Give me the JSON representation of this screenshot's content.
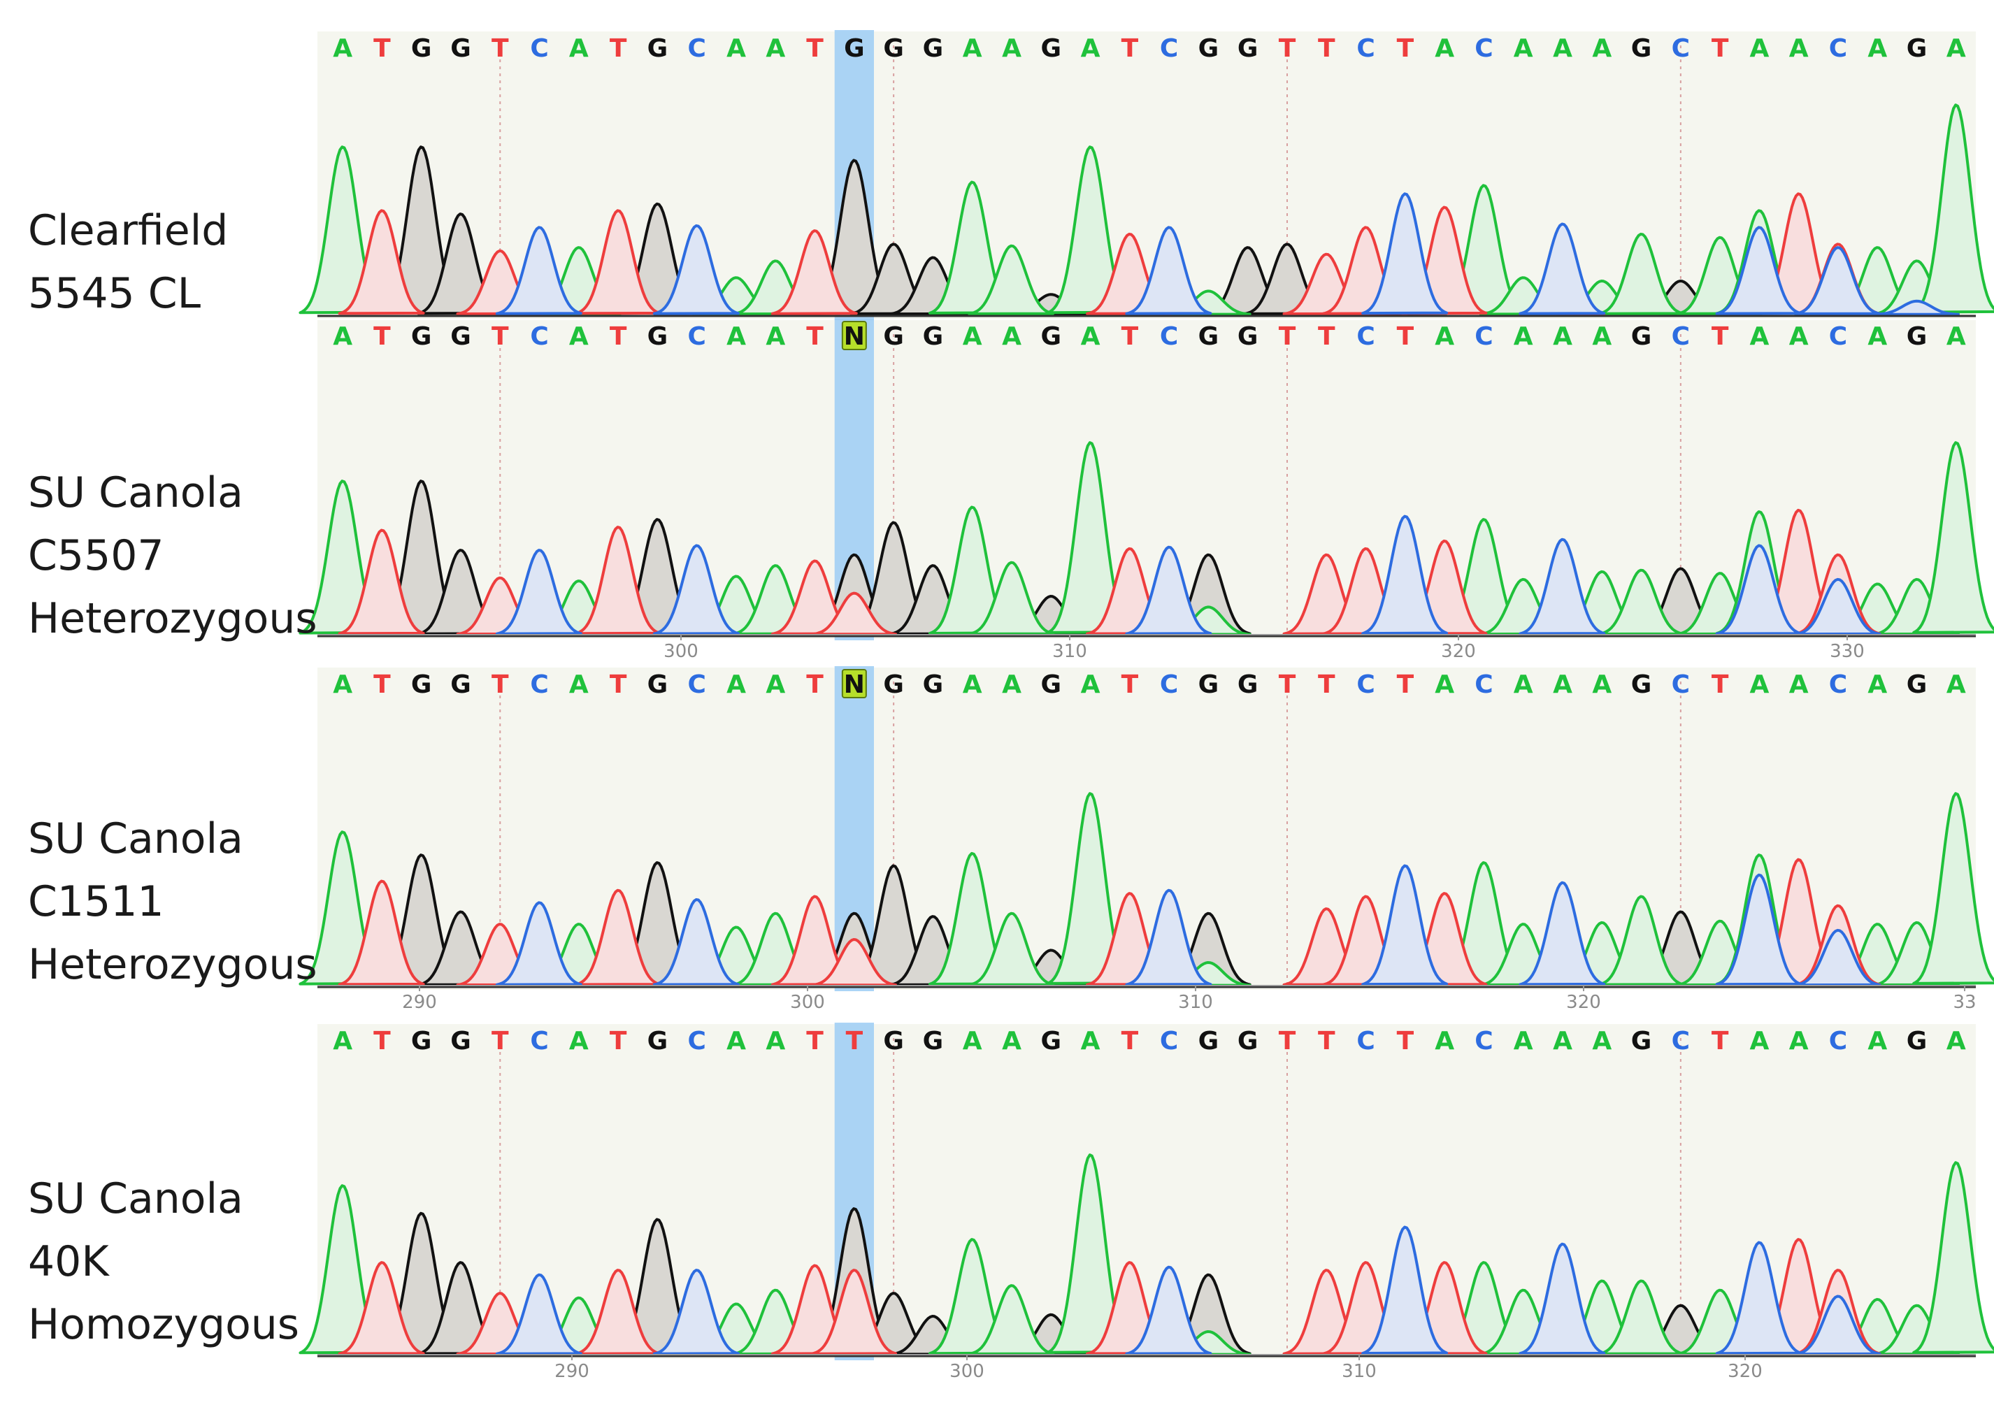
{
  "colors": {
    "A": "#1fc13b",
    "C": "#2d6ce0",
    "G": "#111111",
    "T": "#ee3d3d",
    "N": "#111111",
    "n_box": "#b6df2a",
    "highlight": "#9cccf5",
    "panel_bg": "#f5f6ef"
  },
  "icons": [
    "n-base-badge"
  ],
  "panels": [
    {
      "label_lines": [
        "Clearfield",
        "5545 CL"
      ],
      "calls": [
        "A",
        "T",
        "G",
        "G",
        "T",
        "C",
        "A",
        "T",
        "G",
        "C",
        "A",
        "A",
        "T",
        "G",
        "G",
        "G",
        "A",
        "A",
        "G",
        "A",
        "T",
        "C",
        "G",
        "G",
        "T",
        "T",
        "C",
        "T",
        "A",
        "C",
        "A",
        "A",
        "A",
        "G",
        "C",
        "T",
        "A",
        "A",
        "C",
        "A",
        "G",
        "A"
      ],
      "ticks": []
    },
    {
      "label_lines": [
        "SU Canola",
        "C5507",
        "Heterozygous"
      ],
      "calls": [
        "A",
        "T",
        "G",
        "G",
        "T",
        "C",
        "A",
        "T",
        "G",
        "C",
        "A",
        "A",
        "T",
        "N",
        "G",
        "G",
        "A",
        "A",
        "G",
        "A",
        "T",
        "C",
        "G",
        "G",
        "T",
        "T",
        "C",
        "T",
        "A",
        "C",
        "A",
        "A",
        "A",
        "G",
        "C",
        "T",
        "A",
        "A",
        "C",
        "A",
        "G",
        "A"
      ],
      "ticks": [
        "300",
        "310",
        "320",
        "330"
      ]
    },
    {
      "label_lines": [
        "SU Canola",
        "C1511",
        "Heterozygous"
      ],
      "calls": [
        "A",
        "T",
        "G",
        "G",
        "T",
        "C",
        "A",
        "T",
        "G",
        "C",
        "A",
        "A",
        "T",
        "N",
        "G",
        "G",
        "A",
        "A",
        "G",
        "A",
        "T",
        "C",
        "G",
        "G",
        "T",
        "T",
        "C",
        "T",
        "A",
        "C",
        "A",
        "A",
        "A",
        "G",
        "C",
        "T",
        "A",
        "A",
        "C",
        "A",
        "G",
        "A"
      ],
      "ticks": [
        "290",
        "300",
        "310",
        "320",
        "33"
      ]
    },
    {
      "label_lines": [
        "SU Canola",
        "40K",
        "Homozygous"
      ],
      "calls": [
        "A",
        "T",
        "G",
        "G",
        "T",
        "C",
        "A",
        "T",
        "G",
        "C",
        "A",
        "A",
        "T",
        "T",
        "G",
        "G",
        "A",
        "A",
        "G",
        "A",
        "T",
        "C",
        "G",
        "G",
        "T",
        "T",
        "C",
        "T",
        "A",
        "C",
        "A",
        "A",
        "A",
        "G",
        "C",
        "T",
        "A",
        "A",
        "C",
        "A",
        "G",
        "A"
      ],
      "ticks": [
        "290",
        "300",
        "310",
        "320"
      ]
    }
  ],
  "chart_data": [
    {
      "type": "line",
      "series": [
        {
          "name": "G",
          "peaks": [
            [
              3,
              100
            ],
            [
              4,
              60
            ],
            [
              9,
              66
            ],
            [
              14,
              92
            ],
            [
              15,
              42
            ],
            [
              16,
              34
            ],
            [
              19,
              12
            ],
            [
              22,
              30
            ],
            [
              24,
              40
            ],
            [
              25,
              42
            ],
            [
              28,
              52
            ],
            [
              35,
              20
            ],
            [
              41,
              12
            ]
          ]
        },
        {
          "name": "A",
          "peaks": [
            [
              1,
              100
            ],
            [
              7,
              40
            ],
            [
              11,
              22
            ],
            [
              12,
              32
            ],
            [
              17,
              79
            ],
            [
              18,
              41
            ],
            [
              20,
              100
            ],
            [
              23,
              14
            ],
            [
              30,
              77
            ],
            [
              31,
              22
            ],
            [
              33,
              20
            ],
            [
              34,
              48
            ],
            [
              36,
              46
            ],
            [
              37,
              62
            ],
            [
              40,
              40
            ],
            [
              41,
              32
            ],
            [
              42,
              125
            ]
          ]
        },
        {
          "name": "T",
          "peaks": [
            [
              2,
              62
            ],
            [
              5,
              38
            ],
            [
              8,
              62
            ],
            [
              13,
              50
            ],
            [
              21,
              48
            ],
            [
              26,
              36
            ],
            [
              27,
              52
            ],
            [
              29,
              64
            ],
            [
              32,
              11
            ],
            [
              38,
              72
            ],
            [
              39,
              42
            ]
          ]
        },
        {
          "name": "C",
          "peaks": [
            [
              6,
              52
            ],
            [
              10,
              53
            ],
            [
              22,
              52
            ],
            [
              28,
              72
            ],
            [
              32,
              54
            ],
            [
              37,
              52
            ],
            [
              39,
              40
            ],
            [
              41,
              8
            ]
          ]
        }
      ]
    },
    {
      "type": "line",
      "series": [
        {
          "name": "G",
          "peaks": [
            [
              3,
              100
            ],
            [
              4,
              55
            ],
            [
              9,
              75
            ],
            [
              14,
              52
            ],
            [
              15,
              73
            ],
            [
              16,
              45
            ],
            [
              19,
              25
            ],
            [
              22,
              52
            ],
            [
              23,
              52
            ],
            [
              28,
              62
            ],
            [
              35,
              43
            ],
            [
              41,
              30
            ]
          ]
        },
        {
          "name": "A",
          "peaks": [
            [
              1,
              100
            ],
            [
              7,
              35
            ],
            [
              11,
              38
            ],
            [
              12,
              45
            ],
            [
              17,
              83
            ],
            [
              18,
              47
            ],
            [
              20,
              125
            ],
            [
              23,
              18
            ],
            [
              30,
              75
            ],
            [
              31,
              36
            ],
            [
              33,
              41
            ],
            [
              34,
              42
            ],
            [
              36,
              40
            ],
            [
              37,
              80
            ],
            [
              40,
              33
            ],
            [
              41,
              36
            ],
            [
              42,
              125
            ]
          ]
        },
        {
          "name": "T",
          "peaks": [
            [
              2,
              68
            ],
            [
              5,
              37
            ],
            [
              8,
              70
            ],
            [
              13,
              48
            ],
            [
              14,
              27
            ],
            [
              21,
              56
            ],
            [
              26,
              52
            ],
            [
              27,
              56
            ],
            [
              29,
              61
            ],
            [
              38,
              81
            ],
            [
              39,
              52
            ]
          ]
        },
        {
          "name": "C",
          "peaks": [
            [
              6,
              55
            ],
            [
              10,
              58
            ],
            [
              22,
              57
            ],
            [
              28,
              77
            ],
            [
              32,
              62
            ],
            [
              37,
              58
            ],
            [
              39,
              36
            ]
          ]
        }
      ],
      "xticks": [
        300,
        310,
        320,
        330
      ]
    },
    {
      "type": "line",
      "series": [
        {
          "name": "G",
          "peaks": [
            [
              3,
              85
            ],
            [
              4,
              48
            ],
            [
              9,
              80
            ],
            [
              14,
              47
            ],
            [
              15,
              78
            ],
            [
              16,
              45
            ],
            [
              19,
              23
            ],
            [
              22,
              52
            ],
            [
              23,
              47
            ],
            [
              28,
              40
            ],
            [
              35,
              48
            ],
            [
              41,
              22
            ]
          ]
        },
        {
          "name": "A",
          "peaks": [
            [
              1,
              100
            ],
            [
              7,
              40
            ],
            [
              11,
              38
            ],
            [
              12,
              47
            ],
            [
              17,
              86
            ],
            [
              18,
              47
            ],
            [
              20,
              125
            ],
            [
              23,
              15
            ],
            [
              30,
              80
            ],
            [
              31,
              40
            ],
            [
              33,
              41
            ],
            [
              34,
              58
            ],
            [
              36,
              42
            ],
            [
              37,
              85
            ],
            [
              40,
              40
            ],
            [
              41,
              41
            ],
            [
              42,
              125
            ]
          ]
        },
        {
          "name": "T",
          "peaks": [
            [
              2,
              68
            ],
            [
              5,
              40
            ],
            [
              8,
              62
            ],
            [
              13,
              58
            ],
            [
              14,
              30
            ],
            [
              21,
              60
            ],
            [
              26,
              50
            ],
            [
              27,
              58
            ],
            [
              29,
              60
            ],
            [
              38,
              82
            ],
            [
              39,
              52
            ]
          ]
        },
        {
          "name": "C",
          "peaks": [
            [
              6,
              54
            ],
            [
              10,
              56
            ],
            [
              22,
              62
            ],
            [
              28,
              78
            ],
            [
              32,
              67
            ],
            [
              37,
              72
            ],
            [
              39,
              36
            ]
          ]
        }
      ],
      "xticks": [
        290,
        300,
        310,
        320,
        33
      ]
    },
    {
      "type": "line",
      "series": [
        {
          "name": "G",
          "peaks": [
            [
              3,
              92
            ],
            [
              4,
              60
            ],
            [
              9,
              88
            ],
            [
              14,
              95
            ],
            [
              15,
              40
            ],
            [
              16,
              25
            ],
            [
              19,
              26
            ],
            [
              22,
              54
            ],
            [
              23,
              52
            ],
            [
              28,
              42
            ],
            [
              35,
              32
            ],
            [
              41,
              30
            ]
          ]
        },
        {
          "name": "A",
          "peaks": [
            [
              1,
              110
            ],
            [
              7,
              37
            ],
            [
              11,
              33
            ],
            [
              12,
              42
            ],
            [
              17,
              75
            ],
            [
              18,
              45
            ],
            [
              20,
              130
            ],
            [
              23,
              15
            ],
            [
              30,
              60
            ],
            [
              31,
              42
            ],
            [
              33,
              48
            ],
            [
              34,
              48
            ],
            [
              36,
              42
            ],
            [
              37,
              58
            ],
            [
              40,
              36
            ],
            [
              41,
              32
            ],
            [
              42,
              125
            ]
          ]
        },
        {
          "name": "T",
          "peaks": [
            [
              2,
              60
            ],
            [
              5,
              40
            ],
            [
              8,
              55
            ],
            [
              13,
              58
            ],
            [
              14,
              55
            ],
            [
              21,
              60
            ],
            [
              26,
              55
            ],
            [
              27,
              60
            ],
            [
              29,
              60
            ],
            [
              38,
              75
            ],
            [
              39,
              55
            ]
          ]
        },
        {
          "name": "C",
          "peaks": [
            [
              6,
              52
            ],
            [
              10,
              55
            ],
            [
              22,
              57
            ],
            [
              28,
              83
            ],
            [
              32,
              72
            ],
            [
              37,
              73
            ],
            [
              39,
              38
            ]
          ]
        }
      ],
      "xticks": [
        290,
        300,
        310,
        320
      ]
    }
  ]
}
